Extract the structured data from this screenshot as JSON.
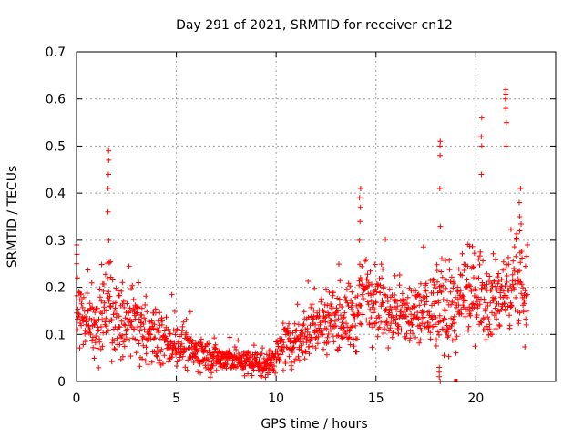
{
  "chart_data": {
    "type": "scatter",
    "title": "Day 291 of 2021, SRMTID for receiver cn12",
    "xlabel": "GPS time / hours",
    "ylabel": "SRMTID / TECUs",
    "xlim": [
      0,
      24
    ],
    "ylim": [
      0,
      0.7
    ],
    "xticks": [
      0,
      5,
      10,
      15,
      20
    ],
    "yticks": [
      0,
      0.1,
      0.2,
      0.3,
      0.4,
      0.5,
      0.6,
      0.7
    ],
    "xtick_labels": [
      "0",
      "5",
      "10",
      "15",
      "20"
    ],
    "ytick_labels": [
      "0",
      "0.1",
      "0.2",
      "0.3",
      "0.4",
      "0.5",
      "0.6",
      "0.7"
    ],
    "grid": true,
    "marker": "+",
    "color": "#ff0000",
    "x_range_hours": [
      0,
      22.6
    ],
    "envelope": {
      "x": [
        0,
        0.5,
        1,
        1.5,
        2,
        3,
        4,
        5,
        6,
        7,
        8,
        9,
        9.5,
        10,
        11,
        12,
        13,
        14,
        14.5,
        15,
        16,
        17,
        18,
        19,
        20,
        21,
        21.5,
        22,
        22.6
      ],
      "median": [
        0.16,
        0.14,
        0.1,
        0.16,
        0.12,
        0.12,
        0.09,
        0.08,
        0.06,
        0.05,
        0.045,
        0.04,
        0.03,
        0.06,
        0.09,
        0.12,
        0.14,
        0.13,
        0.2,
        0.18,
        0.14,
        0.14,
        0.16,
        0.15,
        0.2,
        0.17,
        0.19,
        0.22,
        0.17
      ],
      "spread": [
        0.06,
        0.05,
        0.05,
        0.07,
        0.06,
        0.06,
        0.04,
        0.035,
        0.03,
        0.025,
        0.02,
        0.02,
        0.02,
        0.03,
        0.04,
        0.05,
        0.05,
        0.06,
        0.08,
        0.06,
        0.05,
        0.06,
        0.07,
        0.07,
        0.07,
        0.07,
        0.07,
        0.08,
        0.06
      ]
    },
    "spikes": [
      {
        "x": 0.05,
        "y": [
          0.22,
          0.25,
          0.27,
          0.29
        ]
      },
      {
        "x": 1.6,
        "y": [
          0.3,
          0.36,
          0.41,
          0.44,
          0.47,
          0.49
        ]
      },
      {
        "x": 14.2,
        "y": [
          0.3,
          0.34,
          0.37,
          0.39,
          0.41
        ]
      },
      {
        "x": 18.2,
        "y": [
          0.41,
          0.48,
          0.5,
          0.51
        ]
      },
      {
        "x": 18.2,
        "y": [
          0.0,
          0.01,
          0.02,
          0.03
        ]
      },
      {
        "x": 20.3,
        "y": [
          0.44,
          0.5,
          0.52,
          0.56
        ]
      },
      {
        "x": 21.5,
        "y": [
          0.5,
          0.55,
          0.58,
          0.6,
          0.61,
          0.62
        ]
      },
      {
        "x": 22.2,
        "y": [
          0.32,
          0.35,
          0.38,
          0.41
        ]
      }
    ],
    "special_points": [
      {
        "x": 19.0,
        "y": 0.0
      }
    ]
  }
}
